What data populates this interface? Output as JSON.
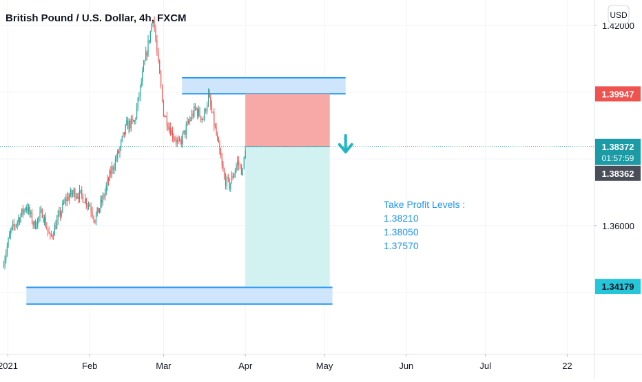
{
  "chart_data": {
    "type": "candlestick",
    "title": "British Pound / U.S. Dollar, 4h, FXCM",
    "currency_button": "USD",
    "x_tick_labels": [
      "2021",
      "Feb",
      "Mar",
      "Apr",
      "May",
      "Jun",
      "Jul",
      "22"
    ],
    "y_tick_labels": [
      "1.42000",
      "1.36000"
    ],
    "ylim": [
      1.3216,
      1.4276
    ],
    "price_path": [
      [
        "2020-12-30",
        1.348
      ],
      [
        "2021-01-02",
        1.358
      ],
      [
        "2021-01-05",
        1.362
      ],
      [
        "2021-01-08",
        1.366
      ],
      [
        "2021-01-11",
        1.36
      ],
      [
        "2021-01-14",
        1.364
      ],
      [
        "2021-01-17",
        1.356
      ],
      [
        "2021-01-20",
        1.362
      ],
      [
        "2021-01-23",
        1.368
      ],
      [
        "2021-01-26",
        1.37
      ],
      [
        "2021-01-29",
        1.369
      ],
      [
        "2021-02-01",
        1.366
      ],
      [
        "2021-02-03",
        1.362
      ],
      [
        "2021-02-06",
        1.368
      ],
      [
        "2021-02-09",
        1.376
      ],
      [
        "2021-02-12",
        1.382
      ],
      [
        "2021-02-15",
        1.39
      ],
      [
        "2021-02-18",
        1.391
      ],
      [
        "2021-02-21",
        1.405
      ],
      [
        "2021-02-24",
        1.418
      ],
      [
        "2021-02-25",
        1.423
      ],
      [
        "2021-02-27",
        1.408
      ],
      [
        "2021-03-01",
        1.394
      ],
      [
        "2021-03-04",
        1.388
      ],
      [
        "2021-03-07",
        1.384
      ],
      [
        "2021-03-10",
        1.39
      ],
      [
        "2021-03-13",
        1.395
      ],
      [
        "2021-03-16",
        1.392
      ],
      [
        "2021-03-18",
        1.399
      ],
      [
        "2021-03-21",
        1.387
      ],
      [
        "2021-03-24",
        1.374
      ],
      [
        "2021-03-26",
        1.372
      ],
      [
        "2021-03-29",
        1.379
      ],
      [
        "2021-03-31",
        1.376
      ],
      [
        "2021-04-01",
        1.3837
      ]
    ],
    "last_price": 1.38372,
    "bar_countdown": "01:57:59",
    "secondary_price": 1.38362,
    "stop_price": 1.39947,
    "target_price": 1.34179,
    "position": {
      "direction": "short",
      "entry": 1.38372,
      "stop": 1.39947,
      "target": 1.34179,
      "start": "2021-04-01",
      "end": "2021-05-03"
    },
    "zones": [
      {
        "name": "resistance",
        "from": 1.3995,
        "to": 1.4043,
        "start": "2021-03-08",
        "end": "2021-05-09"
      },
      {
        "name": "support",
        "from": 1.3365,
        "to": 1.3415,
        "start": "2021-01-08",
        "end": "2021-05-04"
      }
    ],
    "annotation_arrow": {
      "direction": "down",
      "date": "2021-05-09",
      "price": 1.3837
    },
    "take_profit_title": "Take Profit Levels :",
    "take_profit_levels": [
      "1.38210",
      "1.38050",
      "1.37570"
    ],
    "colors": {
      "up": "#26a69a",
      "down": "#ef5350",
      "zone_fill": "#cfe5fb",
      "zone_line": "#2196f3",
      "stop_fill": "#f7a9a7",
      "target_fill": "#d2f1f1",
      "price_line": "#1a9ba5",
      "tp_text": "#2196f3"
    }
  }
}
